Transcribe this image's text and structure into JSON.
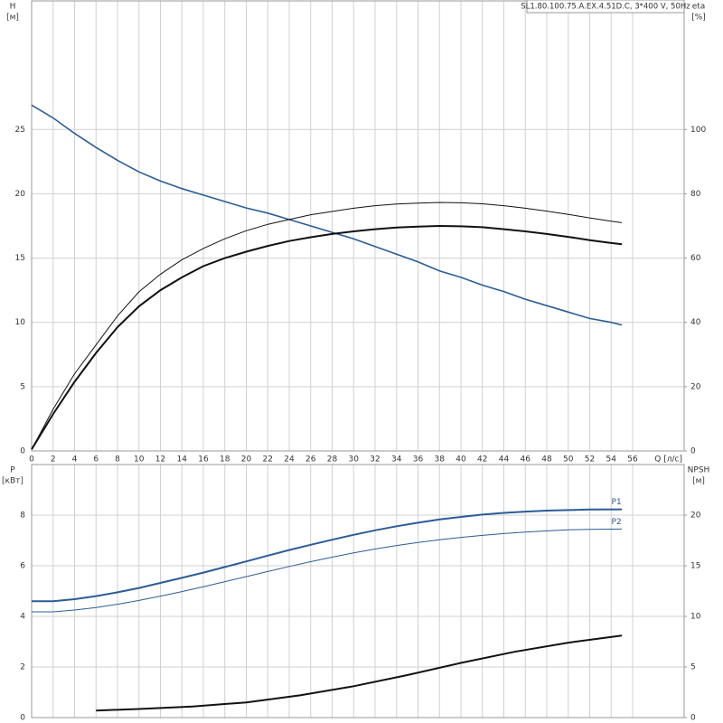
{
  "chart_data": [
    {
      "type": "line",
      "title": "SL1.80.100.75.A.EX.4.51D.C, 3*400 V, 50Hz",
      "x_label": "Q [л/с]",
      "y_label": "H",
      "y_unit": "[м]",
      "y2_label": "eta",
      "y2_unit": "[%]",
      "xlim": [
        0,
        60.8
      ],
      "xticks": [
        0,
        2,
        4,
        6,
        8,
        10,
        12,
        14,
        16,
        18,
        20,
        22,
        24,
        26,
        28,
        30,
        32,
        34,
        36,
        38,
        40,
        42,
        44,
        46,
        48,
        50,
        52,
        54,
        56
      ],
      "ylim": [
        0,
        35
      ],
      "yticks": [
        0,
        5,
        10,
        15,
        20,
        25
      ],
      "y2lim": [
        0,
        140
      ],
      "y2ticks": [
        0,
        20,
        40,
        60,
        80,
        100
      ],
      "grid": true,
      "series": [
        {
          "color": "#2b5c97",
          "line_width": 1.6,
          "x": [
            0,
            2,
            4,
            6,
            8,
            10,
            12,
            14,
            16,
            18,
            20,
            22,
            24,
            26,
            28,
            30,
            32,
            34,
            36,
            38,
            40,
            42,
            44,
            46,
            48,
            50,
            52,
            54,
            55
          ],
          "values": [
            26.9,
            25.9,
            24.7,
            23.6,
            22.6,
            21.7,
            21.0,
            20.4,
            19.9,
            19.4,
            18.9,
            18.5,
            18.0,
            17.5,
            17.0,
            16.5,
            15.9,
            15.3,
            14.7,
            14.0,
            13.5,
            12.9,
            12.4,
            11.8,
            11.3,
            10.8,
            10.3,
            10.0,
            9.8
          ]
        },
        {
          "color": "#111111",
          "line_width": 1,
          "axis": "y2",
          "x": [
            0,
            2,
            4,
            6,
            8,
            10,
            12,
            14,
            16,
            18,
            20,
            22,
            24,
            26,
            28,
            30,
            32,
            34,
            36,
            38,
            40,
            42,
            44,
            46,
            48,
            50,
            52,
            54,
            55
          ],
          "values": [
            0.5,
            13,
            24,
            33,
            42,
            49.5,
            55,
            59.5,
            63,
            66,
            68.5,
            70.5,
            72,
            73.5,
            74.5,
            75.5,
            76.3,
            76.8,
            77.1,
            77.3,
            77.2,
            76.9,
            76.3,
            75.5,
            74.6,
            73.6,
            72.5,
            71.5,
            71
          ]
        },
        {
          "color": "#111111",
          "line_width": 2,
          "axis": "y2",
          "x": [
            0,
            2,
            4,
            6,
            8,
            10,
            12,
            14,
            16,
            18,
            20,
            22,
            24,
            26,
            28,
            30,
            32,
            34,
            36,
            38,
            40,
            42,
            44,
            46,
            48,
            50,
            52,
            54,
            55
          ],
          "values": [
            0.5,
            11.5,
            21.5,
            30.5,
            38.5,
            45,
            50,
            54,
            57.5,
            60,
            62,
            63.8,
            65.3,
            66.5,
            67.5,
            68.3,
            69,
            69.5,
            69.8,
            70,
            69.9,
            69.6,
            69,
            68.3,
            67.5,
            66.6,
            65.6,
            64.7,
            64.3
          ]
        }
      ]
    },
    {
      "type": "line",
      "y_label": "P",
      "y_unit": "[кВт]",
      "y2_label": "NPSH",
      "y2_unit": "[м]",
      "xlim": [
        0,
        60.8
      ],
      "ylim": [
        0,
        10
      ],
      "yticks": [
        0,
        2,
        4,
        6,
        8
      ],
      "y2lim": [
        0,
        25
      ],
      "y2ticks": [
        0,
        5,
        10,
        15,
        20
      ],
      "grid": true,
      "series": [
        {
          "name": "P1",
          "color": "#2b5c97",
          "line_width": 2,
          "x": [
            0,
            2,
            4,
            6,
            8,
            10,
            12,
            14,
            16,
            18,
            20,
            22,
            24,
            26,
            28,
            30,
            32,
            34,
            36,
            38,
            40,
            42,
            44,
            46,
            48,
            50,
            52,
            55
          ],
          "values": [
            4.6,
            4.6,
            4.68,
            4.8,
            4.95,
            5.12,
            5.32,
            5.52,
            5.73,
            5.95,
            6.17,
            6.4,
            6.62,
            6.83,
            7.03,
            7.22,
            7.4,
            7.56,
            7.7,
            7.83,
            7.93,
            8.02,
            8.09,
            8.14,
            8.18,
            8.2,
            8.22,
            8.23
          ]
        },
        {
          "name": "P2",
          "color": "#2b5c97",
          "line_width": 1,
          "x": [
            0,
            2,
            4,
            6,
            8,
            10,
            12,
            14,
            16,
            18,
            20,
            22,
            24,
            26,
            28,
            30,
            32,
            34,
            36,
            38,
            40,
            42,
            44,
            46,
            48,
            50,
            52,
            55
          ],
          "values": [
            4.18,
            4.18,
            4.25,
            4.35,
            4.48,
            4.63,
            4.8,
            4.98,
            5.17,
            5.37,
            5.57,
            5.77,
            5.97,
            6.16,
            6.34,
            6.51,
            6.66,
            6.8,
            6.92,
            7.03,
            7.12,
            7.2,
            7.27,
            7.33,
            7.38,
            7.42,
            7.44,
            7.45
          ]
        },
        {
          "color": "#111111",
          "line_width": 2,
          "axis": "y2",
          "x": [
            6,
            10,
            15,
            20,
            25,
            30,
            35,
            40,
            45,
            50,
            55
          ],
          "values": [
            0.7,
            0.85,
            1.1,
            1.5,
            2.2,
            3.1,
            4.2,
            5.4,
            6.5,
            7.4,
            8.1
          ]
        }
      ]
    }
  ]
}
